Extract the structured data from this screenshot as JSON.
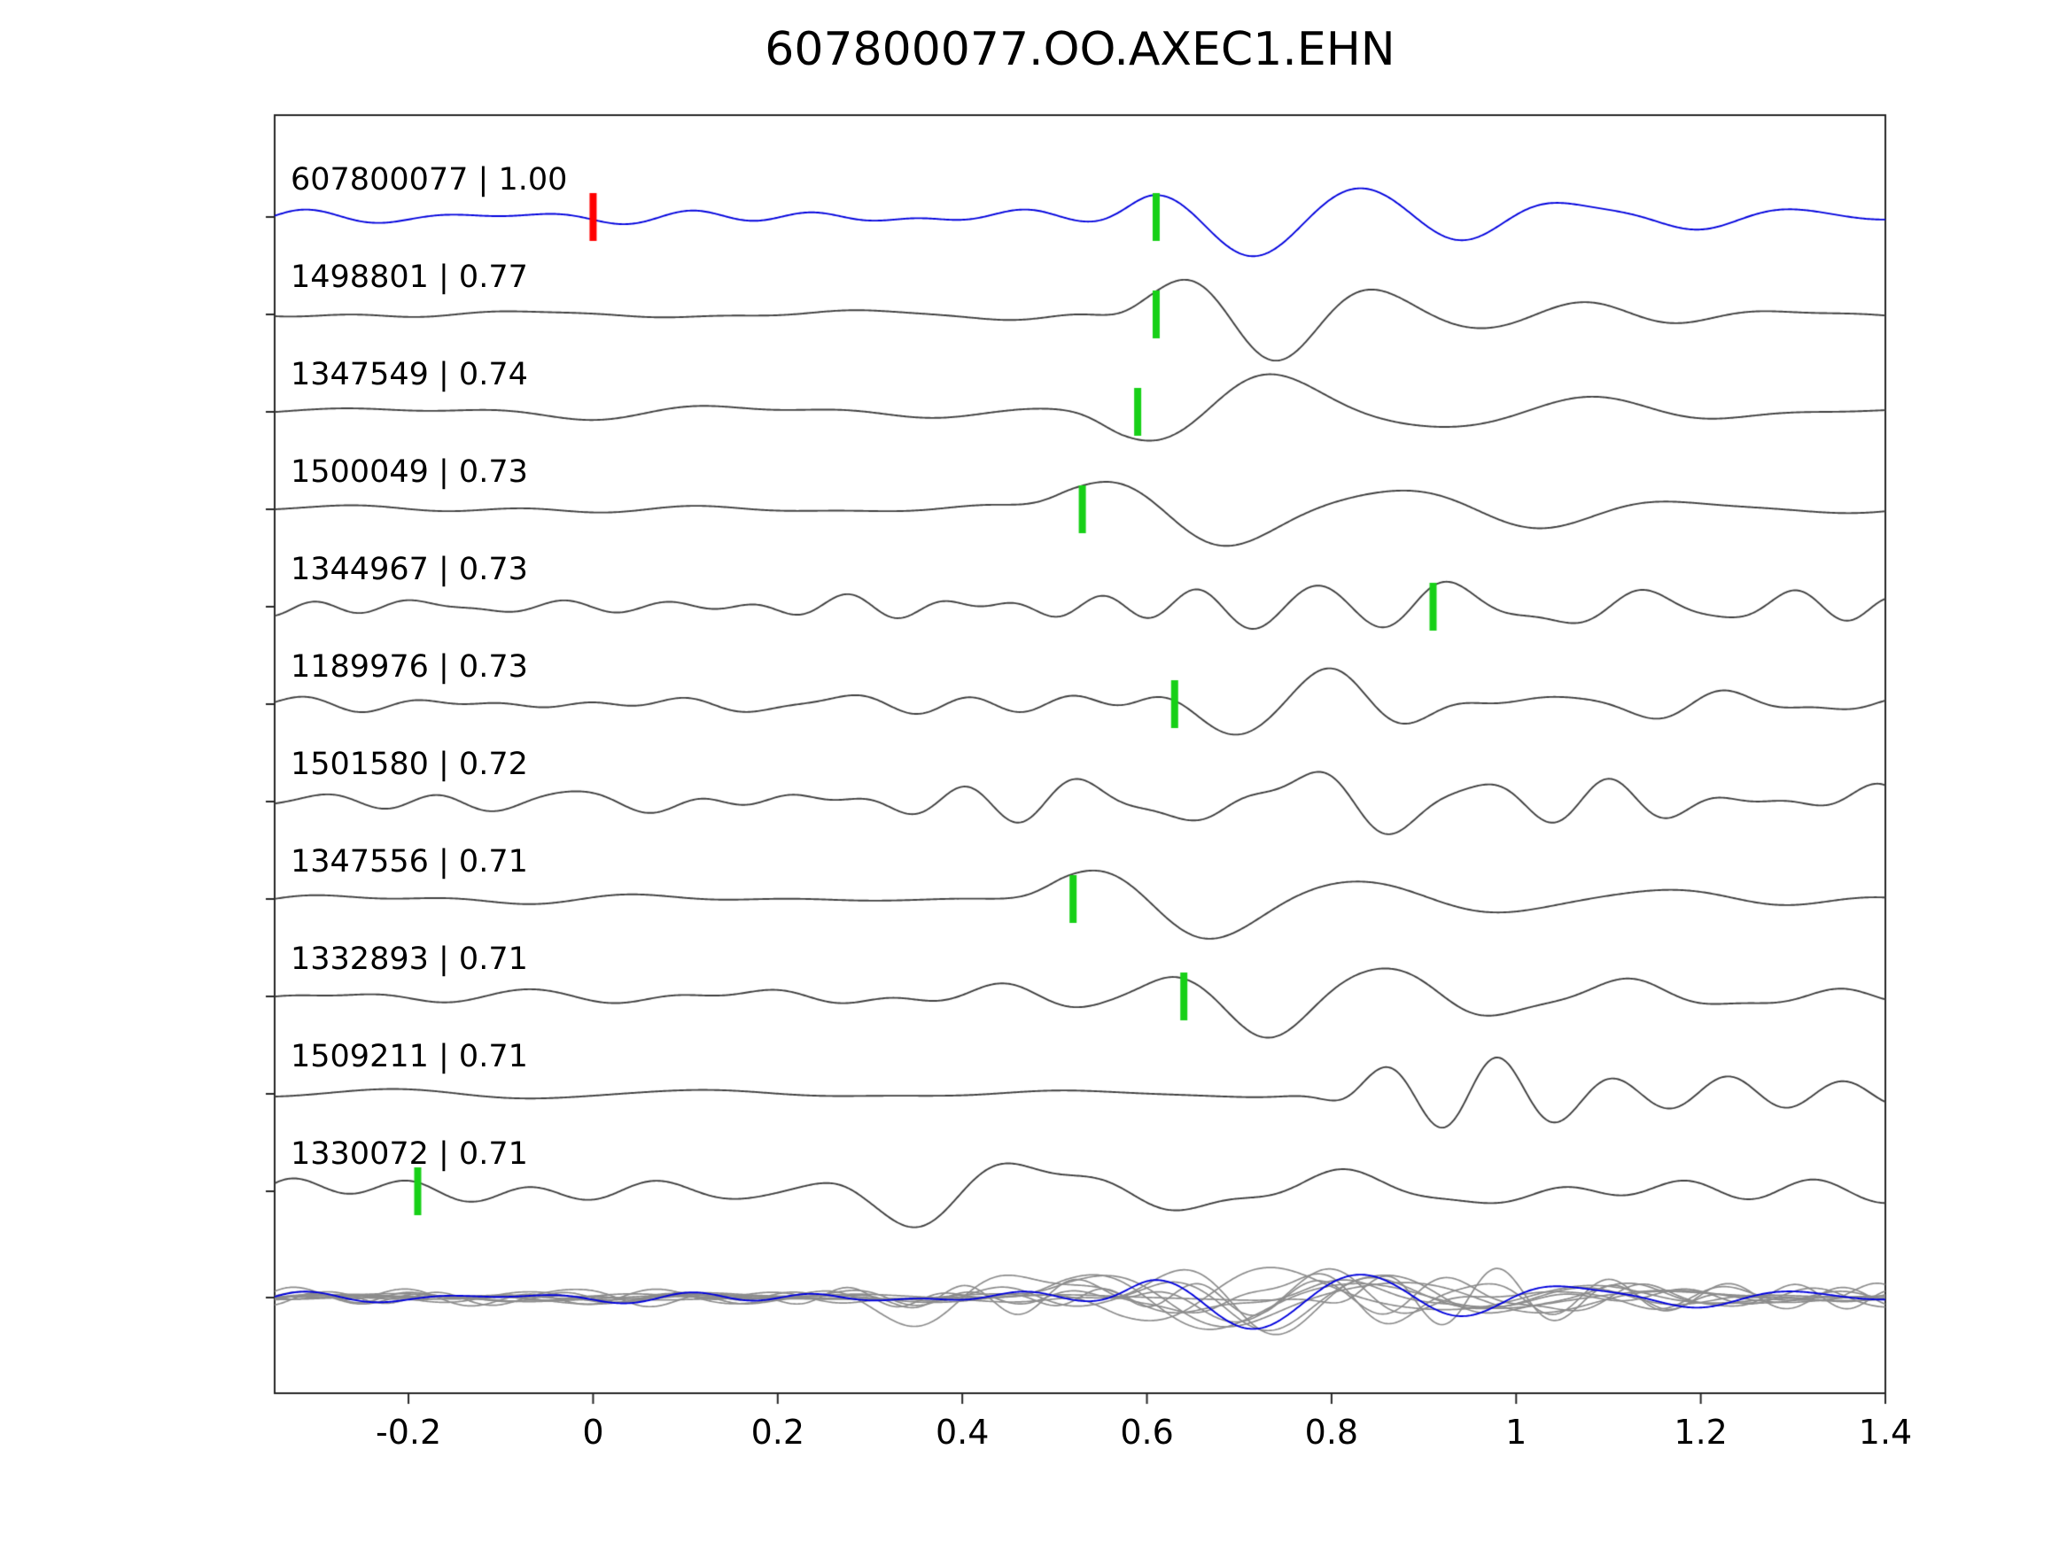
{
  "chart_data": {
    "type": "line",
    "title": "607800077.OO.AXEC1.EHN",
    "xlabel": "",
    "ylabel": "",
    "xlim": [
      -0.345,
      1.4
    ],
    "x_ticks": [
      -0.2,
      0,
      0.2,
      0.4,
      0.6,
      0.8,
      1,
      1.2,
      1.4
    ],
    "x_tick_labels": [
      "-0.2",
      "0",
      "0.2",
      "0.4",
      "0.6",
      "0.8",
      "1",
      "1.2",
      "1.4"
    ],
    "grid": false,
    "legend": null,
    "colors": {
      "reference_trace": "#0000dd",
      "trace": "#3f3f3f",
      "overlay_trace": "#8c8c8c",
      "pick_marker": "#17d017",
      "reference_marker": "#ff0000",
      "axis": "#262626"
    },
    "traces": [
      {
        "id": "607800077",
        "cc": "1.00",
        "label": "607800077 | 1.00",
        "is_reference": true,
        "pick_time": 0.61,
        "reference_marker_time": 0.0,
        "synth": {
          "seed": 11,
          "na": 8,
          "nf": [
            3.0,
            9.0
          ],
          "ea": 40,
          "et": 0.61,
          "ef": 4.2
        }
      },
      {
        "id": "1498801",
        "cc": "0.77",
        "label": "1498801 | 0.77",
        "is_reference": false,
        "pick_time": 0.61,
        "reference_marker_time": null,
        "synth": {
          "seed": 22,
          "na": 7,
          "nf": [
            2.5,
            8.0
          ],
          "ea": 38,
          "et": 0.6,
          "ef": 4.5
        }
      },
      {
        "id": "1347549",
        "cc": "0.74",
        "label": "1347549 | 0.74",
        "is_reference": false,
        "pick_time": 0.59,
        "reference_marker_time": null,
        "synth": {
          "seed": 33,
          "na": 6,
          "nf": [
            1.8,
            6.0
          ],
          "ea": 42,
          "et": 0.575,
          "ef": 3.0
        }
      },
      {
        "id": "1500049",
        "cc": "0.73",
        "label": "1500049 | 0.73",
        "is_reference": false,
        "pick_time": 0.53,
        "reference_marker_time": null,
        "synth": {
          "seed": 44,
          "na": 6,
          "nf": [
            1.8,
            6.0
          ],
          "ea": 40,
          "et": 0.52,
          "ef": 3.0
        }
      },
      {
        "id": "1344967",
        "cc": "0.73",
        "label": "1344967 | 0.73",
        "is_reference": false,
        "pick_time": 0.91,
        "reference_marker_time": null,
        "synth": {
          "seed": 55,
          "na": 18,
          "nf": [
            4.0,
            13.0
          ],
          "ea": 24,
          "et": 0.9,
          "ef": 5.0
        }
      },
      {
        "id": "1189976",
        "cc": "0.73",
        "label": "1189976 | 0.73",
        "is_reference": false,
        "pick_time": 0.63,
        "reference_marker_time": null,
        "synth": {
          "seed": 66,
          "na": 11,
          "nf": [
            3.0,
            10.0
          ],
          "ea": 30,
          "et": 0.62,
          "ef": 4.5
        }
      },
      {
        "id": "1501580",
        "cc": "0.72",
        "label": "1501580 | 0.72",
        "is_reference": false,
        "pick_time": null,
        "reference_marker_time": null,
        "synth": {
          "seed": 77,
          "na": 20,
          "nf": [
            3.5,
            11.0
          ],
          "ea": 20,
          "et": 0.68,
          "ef": 5.0
        }
      },
      {
        "id": "1347556",
        "cc": "0.71",
        "label": "1347556 | 0.71",
        "is_reference": false,
        "pick_time": 0.52,
        "reference_marker_time": null,
        "synth": {
          "seed": 88,
          "na": 6,
          "nf": [
            1.8,
            6.5
          ],
          "ea": 42,
          "et": 0.515,
          "ef": 3.2
        }
      },
      {
        "id": "1332893",
        "cc": "0.71",
        "label": "1332893 | 0.71",
        "is_reference": false,
        "pick_time": 0.64,
        "reference_marker_time": null,
        "synth": {
          "seed": 99,
          "na": 10,
          "nf": [
            2.5,
            9.0
          ],
          "ea": 34,
          "et": 0.635,
          "ef": 4.0
        }
      },
      {
        "id": "1509211",
        "cc": "0.71",
        "label": "1509211 | 0.71",
        "is_reference": false,
        "pick_time": null,
        "reference_marker_time": null,
        "synth": {
          "seed": 110,
          "na": 6,
          "nf": [
            2.0,
            7.0
          ],
          "ea": 34,
          "et": 0.84,
          "ef": 8.0
        }
      },
      {
        "id": "1330072",
        "cc": "0.71",
        "label": "1330072 | 0.71",
        "is_reference": false,
        "pick_time": -0.19,
        "reference_marker_time": null,
        "synth": {
          "seed": 121,
          "na": 13,
          "nf": [
            2.0,
            9.0
          ],
          "ea": 30,
          "et": 0.3,
          "ef": 3.2
        }
      }
    ],
    "overlay_row": {
      "description": "all gray traces overlaid together with the blue reference trace",
      "includes_reference": true
    }
  }
}
